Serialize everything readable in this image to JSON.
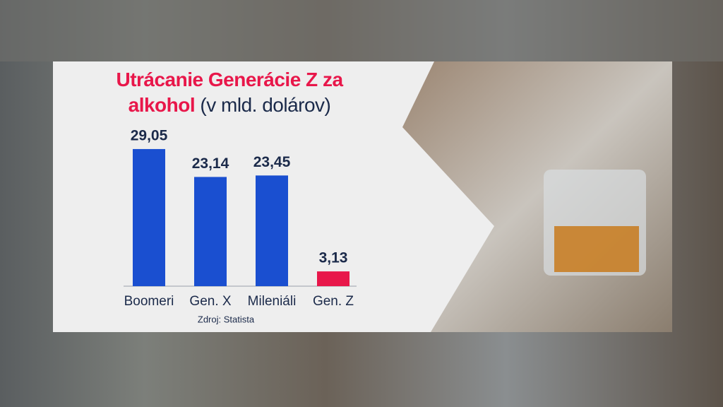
{
  "chart_data": {
    "type": "bar",
    "title": "Utrácanie Generácie Z za alkohol",
    "subtitle": "(v mld. dolárov)",
    "categories": [
      "Boomeri",
      "Gen. X",
      "Mileniáli",
      "Gen. Z"
    ],
    "values": [
      29.05,
      23.14,
      23.45,
      3.13
    ],
    "value_labels": [
      "29,05",
      "23,14",
      "23,45",
      "3,13"
    ],
    "colors": [
      "#1a4fd0",
      "#1a4fd0",
      "#1a4fd0",
      "#e8174a"
    ],
    "source": "Zdroj: Statista"
  }
}
